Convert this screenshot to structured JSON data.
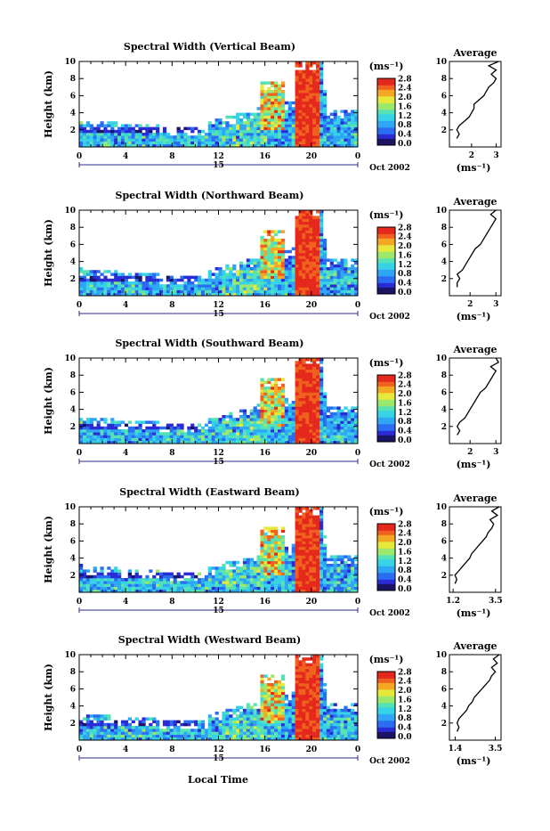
{
  "chart_data": {
    "type": "heatmap",
    "xlabel": "Local Time",
    "date_label": "Oct 2002",
    "day_label": "15",
    "unit_label": "(ms⁻¹)",
    "x_range": [
      0,
      24
    ],
    "x_ticks": [
      "0",
      "4",
      "8",
      "12",
      "16",
      "20",
      "0"
    ],
    "y_range": [
      0,
      10
    ],
    "y_ticks": [
      "2",
      "4",
      "6",
      "8",
      "10"
    ],
    "ylabel": "Height (km)",
    "colorbar_ticks": [
      "0.0",
      "0.4",
      "0.8",
      "1.2",
      "1.6",
      "2.0",
      "2.4",
      "2.8"
    ],
    "colorbar_range": [
      0.0,
      2.8
    ],
    "profile_title": "Average",
    "profile_xlabel": "(ms⁻¹)",
    "panels": [
      {
        "title": "Spectral Width (Vertical Beam)",
        "profile_xticks": [
          "2",
          "3"
        ],
        "profile_xrange": [
          1.1,
          3.2
        ],
        "profile_heights": [
          1.0,
          1.5,
          2.0,
          2.5,
          3.0,
          3.5,
          4.0,
          4.5,
          5.0,
          5.5,
          6.0,
          6.5,
          7.0,
          7.5,
          8.0,
          8.5,
          9.0,
          9.5,
          10.0
        ],
        "profile_values": [
          1.4,
          1.5,
          1.4,
          1.5,
          1.7,
          1.9,
          2.0,
          2.1,
          2.1,
          2.3,
          2.5,
          2.6,
          2.7,
          2.9,
          3.0,
          2.8,
          3.0,
          2.7,
          3.1
        ]
      },
      {
        "title": "Spectral Width (Northward Beam)",
        "profile_xticks": [
          "2",
          "3"
        ],
        "profile_xrange": [
          1.2,
          3.2
        ],
        "profile_heights": [
          1.0,
          1.5,
          2.0,
          2.5,
          3.0,
          3.5,
          4.0,
          4.5,
          5.0,
          5.5,
          6.0,
          6.5,
          7.0,
          7.5,
          8.0,
          8.5,
          9.0,
          9.5,
          10.0
        ],
        "profile_values": [
          1.5,
          1.5,
          1.6,
          1.5,
          1.7,
          1.8,
          1.9,
          2.0,
          2.1,
          2.2,
          2.4,
          2.5,
          2.6,
          2.7,
          2.8,
          2.9,
          3.0,
          2.8,
          3.0
        ]
      },
      {
        "title": "Spectral Width (Southward Beam)",
        "profile_xticks": [
          "2",
          "3"
        ],
        "profile_xrange": [
          1.2,
          3.2
        ],
        "profile_heights": [
          1.0,
          1.5,
          2.0,
          2.5,
          3.0,
          3.5,
          4.0,
          4.5,
          5.0,
          5.5,
          6.0,
          6.5,
          7.0,
          7.5,
          8.0,
          8.5,
          9.0,
          9.5,
          10.0
        ],
        "profile_values": [
          1.5,
          1.6,
          1.5,
          1.6,
          1.8,
          1.9,
          2.0,
          2.1,
          2.2,
          2.3,
          2.4,
          2.6,
          2.7,
          2.8,
          2.9,
          3.0,
          2.8,
          3.1,
          3.0
        ]
      },
      {
        "title": "Spectral Width (Eastward Beam)",
        "profile_xticks": [
          "1.2",
          "3.5"
        ],
        "profile_xrange": [
          1.0,
          3.8
        ],
        "profile_heights": [
          1.0,
          1.5,
          2.0,
          2.5,
          3.0,
          3.5,
          4.0,
          4.5,
          5.0,
          5.5,
          6.0,
          6.5,
          7.0,
          7.5,
          8.0,
          8.5,
          9.0,
          9.5,
          10.0
        ],
        "profile_values": [
          1.3,
          1.4,
          1.3,
          1.5,
          1.7,
          1.9,
          2.1,
          2.2,
          2.4,
          2.6,
          2.8,
          3.0,
          3.1,
          3.3,
          3.4,
          3.2,
          3.6,
          3.3,
          3.7
        ]
      },
      {
        "title": "Spectral Width (Westward Beam)",
        "profile_xticks": [
          "1.4",
          "3.5"
        ],
        "profile_xrange": [
          1.1,
          3.8
        ],
        "profile_heights": [
          1.0,
          1.5,
          2.0,
          2.5,
          3.0,
          3.5,
          4.0,
          4.5,
          5.0,
          5.5,
          6.0,
          6.5,
          7.0,
          7.5,
          8.0,
          8.5,
          9.0,
          9.5,
          10.0
        ],
        "profile_values": [
          1.5,
          1.6,
          1.5,
          1.6,
          1.8,
          2.0,
          2.1,
          2.3,
          2.4,
          2.6,
          2.8,
          3.0,
          3.2,
          3.3,
          3.5,
          3.3,
          3.6,
          3.4,
          3.7
        ]
      }
    ]
  }
}
